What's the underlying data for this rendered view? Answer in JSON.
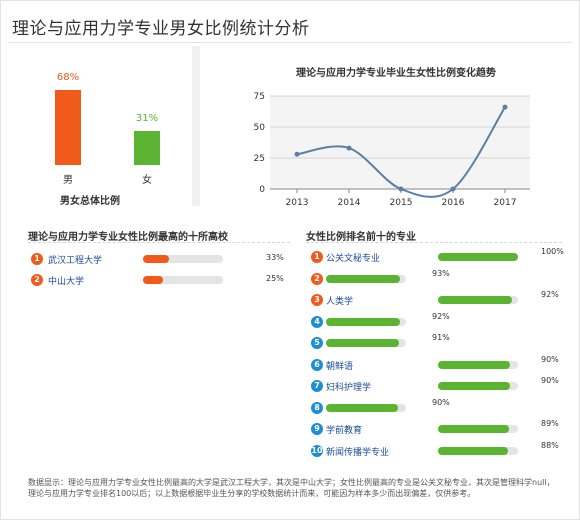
{
  "page": {
    "title": "理论与应用力学专业男女比例统计分析"
  },
  "colors": {
    "orange": "#f05a1a",
    "green": "#5bb431",
    "blue": "#1d8ed6",
    "line": "#5a80a6",
    "track": "#e4e4e4"
  },
  "chart_data": [
    {
      "type": "bar",
      "title": "男女总体比例",
      "categories": [
        "男",
        "女"
      ],
      "values": [
        68,
        31
      ],
      "value_labels": [
        "68%",
        "31%"
      ],
      "colors": [
        "#f05a1a",
        "#5bb431"
      ]
    },
    {
      "type": "line",
      "title": "理论与应用力学专业毕业生女性比例变化趋势",
      "x": [
        "2013",
        "2014",
        "2015",
        "2016",
        "2017"
      ],
      "y": [
        28,
        33,
        0,
        0,
        66
      ],
      "ylim": [
        0,
        75
      ],
      "yticks": [
        "0",
        "25",
        "50",
        "75"
      ],
      "grid": true
    },
    {
      "type": "bar",
      "title": "理论与应用力学专业女性比例最高的十所高校",
      "categories": [
        "武汉工程大学",
        "中山大学"
      ],
      "values": [
        33,
        25
      ],
      "value_labels": [
        "33%",
        "25%"
      ]
    },
    {
      "type": "bar",
      "title": "女性比例排名前十的专业",
      "categories": [
        "公关文秘专业",
        "",
        "人类学",
        "",
        "",
        "朝鲜语",
        "妇科护理学",
        "",
        "学前教育",
        "新闻传播学专业"
      ],
      "values": [
        100,
        93,
        92,
        92,
        91,
        90,
        90,
        90,
        89,
        88
      ],
      "value_labels": [
        "100%",
        "93%",
        "92%",
        "92%",
        "91%",
        "90%",
        "90%",
        "90%",
        "89%",
        "88%"
      ]
    }
  ],
  "schools": {
    "title": "理论与应用力学专业女性比例最高的十所高校",
    "items": [
      {
        "rank": "1",
        "name": "武汉工程大学",
        "pct": "33%"
      },
      {
        "rank": "2",
        "name": "中山大学",
        "pct": "25%"
      }
    ]
  },
  "majors": {
    "title": "女性比例排名前十的专业",
    "items": [
      {
        "rank": "1",
        "name": "公关文秘专业",
        "pct": "100%"
      },
      {
        "rank": "2",
        "name": "",
        "pct": "93%"
      },
      {
        "rank": "3",
        "name": "人类学",
        "pct": "92%"
      },
      {
        "rank": "4",
        "name": "",
        "pct": "92%"
      },
      {
        "rank": "5",
        "name": "",
        "pct": "91%"
      },
      {
        "rank": "6",
        "name": "朝鲜语",
        "pct": "90%"
      },
      {
        "rank": "7",
        "name": "妇科护理学",
        "pct": "90%"
      },
      {
        "rank": "8",
        "name": "",
        "pct": "90%"
      },
      {
        "rank": "9",
        "name": "学前教育",
        "pct": "89%"
      },
      {
        "rank": "10",
        "name": "新闻传播学专业",
        "pct": "88%"
      }
    ]
  },
  "footer": {
    "note": "数据显示：理论与应用力学专业女性比例最高的大学是武汉工程大学，其次是中山大学；女性比例最高的专业是公关文秘专业，其次是管理科学null，理论与应用力学专业排名100以后；以上数据根据毕业生分享的学校数据统计而来，可能因为样本多少而出现偏差，仅供参考。"
  }
}
